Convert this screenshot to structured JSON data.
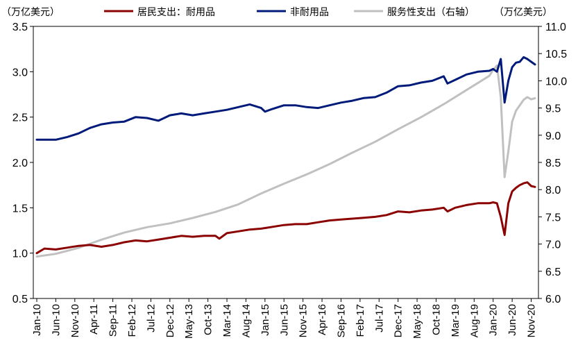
{
  "chart_data": {
    "type": "line",
    "left_unit": "（万亿美元）",
    "right_unit": "（万亿美元）",
    "yleft": {
      "min": 0.5,
      "max": 3.5,
      "ticks": [
        "0.5",
        "1.0",
        "1.5",
        "2.0",
        "2.5",
        "3.0",
        "3.5"
      ]
    },
    "yright": {
      "min": 6.0,
      "max": 11.0,
      "ticks": [
        "6.0",
        "6.5",
        "7.0",
        "7.5",
        "8.0",
        "8.5",
        "9.0",
        "9.5",
        "10.0",
        "10.5",
        "11.0"
      ]
    },
    "x_range": [
      "2010-01",
      "2020-12"
    ],
    "x_tick_labels": [
      "Jan-10",
      "Jun-10",
      "Nov-10",
      "Apr-11",
      "Sep-11",
      "Feb-12",
      "Jul-12",
      "Dec-12",
      "May-13",
      "Oct-13",
      "Mar-14",
      "Aug-14",
      "Jan-15",
      "Jun-15",
      "Nov-15",
      "Apr-16",
      "Sep-16",
      "Feb-17",
      "Jul-17",
      "Dec-17",
      "May-18",
      "Oct-18",
      "Mar-19",
      "Aug-19",
      "Jan-20",
      "Jun-20",
      "Nov-20"
    ],
    "series": [
      {
        "name": "居民支出：耐用品",
        "axis": "left",
        "color": "#8b0000",
        "points": [
          [
            "2010-01",
            1.0
          ],
          [
            "2010-03",
            1.05
          ],
          [
            "2010-06",
            1.04
          ],
          [
            "2010-09",
            1.06
          ],
          [
            "2010-12",
            1.08
          ],
          [
            "2011-03",
            1.09
          ],
          [
            "2011-06",
            1.07
          ],
          [
            "2011-09",
            1.09
          ],
          [
            "2011-12",
            1.12
          ],
          [
            "2012-03",
            1.14
          ],
          [
            "2012-06",
            1.13
          ],
          [
            "2012-09",
            1.15
          ],
          [
            "2012-12",
            1.17
          ],
          [
            "2013-03",
            1.19
          ],
          [
            "2013-06",
            1.18
          ],
          [
            "2013-09",
            1.19
          ],
          [
            "2013-12",
            1.19
          ],
          [
            "2014-01",
            1.16
          ],
          [
            "2014-03",
            1.22
          ],
          [
            "2014-06",
            1.24
          ],
          [
            "2014-09",
            1.26
          ],
          [
            "2014-12",
            1.27
          ],
          [
            "2015-03",
            1.29
          ],
          [
            "2015-06",
            1.31
          ],
          [
            "2015-09",
            1.32
          ],
          [
            "2015-12",
            1.32
          ],
          [
            "2016-03",
            1.34
          ],
          [
            "2016-06",
            1.36
          ],
          [
            "2016-09",
            1.37
          ],
          [
            "2016-12",
            1.38
          ],
          [
            "2017-03",
            1.39
          ],
          [
            "2017-06",
            1.4
          ],
          [
            "2017-09",
            1.42
          ],
          [
            "2017-12",
            1.46
          ],
          [
            "2018-03",
            1.45
          ],
          [
            "2018-06",
            1.47
          ],
          [
            "2018-09",
            1.48
          ],
          [
            "2018-12",
            1.5
          ],
          [
            "2019-01",
            1.46
          ],
          [
            "2019-03",
            1.5
          ],
          [
            "2019-06",
            1.53
          ],
          [
            "2019-09",
            1.55
          ],
          [
            "2019-12",
            1.55
          ],
          [
            "2020-01",
            1.56
          ],
          [
            "2020-02",
            1.55
          ],
          [
            "2020-03",
            1.4
          ],
          [
            "2020-04",
            1.2
          ],
          [
            "2020-05",
            1.55
          ],
          [
            "2020-06",
            1.68
          ],
          [
            "2020-07",
            1.72
          ],
          [
            "2020-08",
            1.75
          ],
          [
            "2020-09",
            1.77
          ],
          [
            "2020-10",
            1.78
          ],
          [
            "2020-11",
            1.74
          ],
          [
            "2020-12",
            1.73
          ]
        ]
      },
      {
        "name": "非耐用品",
        "axis": "left",
        "color": "#001a7a",
        "points": [
          [
            "2010-01",
            2.25
          ],
          [
            "2010-03",
            2.25
          ],
          [
            "2010-06",
            2.25
          ],
          [
            "2010-09",
            2.28
          ],
          [
            "2010-12",
            2.32
          ],
          [
            "2011-03",
            2.38
          ],
          [
            "2011-06",
            2.42
          ],
          [
            "2011-09",
            2.44
          ],
          [
            "2011-12",
            2.45
          ],
          [
            "2012-03",
            2.5
          ],
          [
            "2012-06",
            2.49
          ],
          [
            "2012-09",
            2.46
          ],
          [
            "2012-12",
            2.52
          ],
          [
            "2013-03",
            2.54
          ],
          [
            "2013-06",
            2.52
          ],
          [
            "2013-09",
            2.54
          ],
          [
            "2013-12",
            2.56
          ],
          [
            "2014-03",
            2.58
          ],
          [
            "2014-06",
            2.61
          ],
          [
            "2014-09",
            2.64
          ],
          [
            "2014-12",
            2.6
          ],
          [
            "2015-01",
            2.56
          ],
          [
            "2015-03",
            2.59
          ],
          [
            "2015-06",
            2.63
          ],
          [
            "2015-09",
            2.63
          ],
          [
            "2015-12",
            2.61
          ],
          [
            "2016-03",
            2.6
          ],
          [
            "2016-06",
            2.63
          ],
          [
            "2016-09",
            2.66
          ],
          [
            "2016-12",
            2.68
          ],
          [
            "2017-03",
            2.71
          ],
          [
            "2017-06",
            2.72
          ],
          [
            "2017-09",
            2.77
          ],
          [
            "2017-12",
            2.84
          ],
          [
            "2018-03",
            2.85
          ],
          [
            "2018-06",
            2.88
          ],
          [
            "2018-09",
            2.9
          ],
          [
            "2018-12",
            2.95
          ],
          [
            "2019-01",
            2.87
          ],
          [
            "2019-03",
            2.91
          ],
          [
            "2019-06",
            2.97
          ],
          [
            "2019-09",
            3.0
          ],
          [
            "2019-12",
            3.01
          ],
          [
            "2020-01",
            3.03
          ],
          [
            "2020-02",
            3.0
          ],
          [
            "2020-03",
            3.14
          ],
          [
            "2020-04",
            2.66
          ],
          [
            "2020-05",
            2.9
          ],
          [
            "2020-06",
            3.05
          ],
          [
            "2020-07",
            3.1
          ],
          [
            "2020-08",
            3.11
          ],
          [
            "2020-09",
            3.16
          ],
          [
            "2020-10",
            3.14
          ],
          [
            "2020-11",
            3.11
          ],
          [
            "2020-12",
            3.08
          ]
        ]
      },
      {
        "name": "服务性支出（右轴）",
        "axis": "right",
        "color": "#c0c0c0",
        "points": [
          [
            "2010-01",
            6.77
          ],
          [
            "2010-06",
            6.82
          ],
          [
            "2010-12",
            6.93
          ],
          [
            "2011-06",
            7.08
          ],
          [
            "2011-12",
            7.21
          ],
          [
            "2012-06",
            7.31
          ],
          [
            "2012-12",
            7.38
          ],
          [
            "2013-06",
            7.48
          ],
          [
            "2013-12",
            7.59
          ],
          [
            "2014-06",
            7.73
          ],
          [
            "2014-12",
            7.93
          ],
          [
            "2015-06",
            8.11
          ],
          [
            "2015-12",
            8.28
          ],
          [
            "2016-06",
            8.47
          ],
          [
            "2016-12",
            8.68
          ],
          [
            "2017-06",
            8.88
          ],
          [
            "2017-12",
            9.11
          ],
          [
            "2018-06",
            9.33
          ],
          [
            "2018-12",
            9.57
          ],
          [
            "2019-06",
            9.83
          ],
          [
            "2019-12",
            10.09
          ],
          [
            "2020-01",
            10.2
          ],
          [
            "2020-02",
            10.28
          ],
          [
            "2020-03",
            9.7
          ],
          [
            "2020-04",
            8.23
          ],
          [
            "2020-05",
            8.7
          ],
          [
            "2020-06",
            9.25
          ],
          [
            "2020-07",
            9.45
          ],
          [
            "2020-08",
            9.55
          ],
          [
            "2020-09",
            9.65
          ],
          [
            "2020-10",
            9.7
          ],
          [
            "2020-11",
            9.66
          ],
          [
            "2020-12",
            9.68
          ]
        ]
      }
    ]
  }
}
